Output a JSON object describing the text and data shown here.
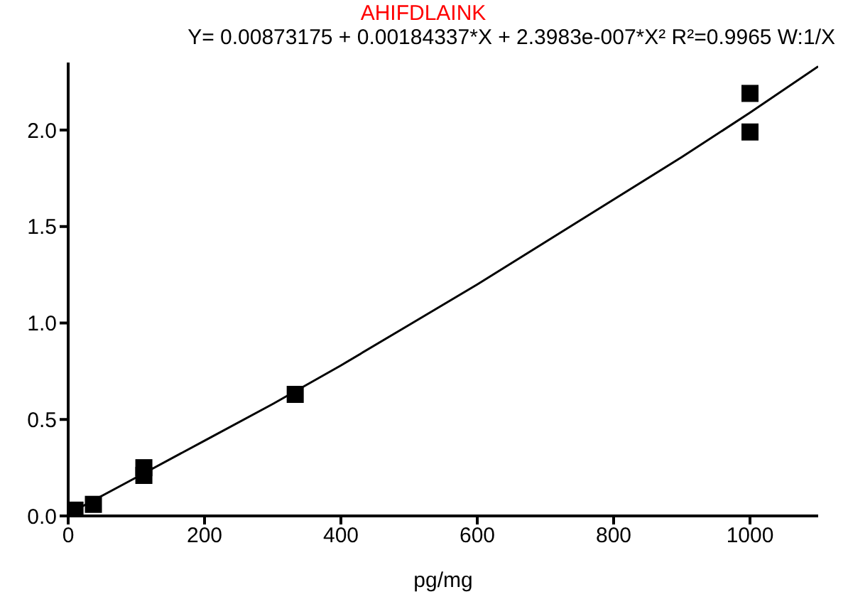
{
  "chart_data": {
    "type": "scatter",
    "title": "AHIFDLAINK",
    "subtitle": "Y= 0.00873175 + 0.00184337*X + 2.3983e-007*X² R²=0.9965 W:1/X",
    "xlabel": "pg/mg",
    "series": [
      {
        "color": "#000000",
        "marker": "square",
        "x": [
          10,
          37,
          111,
          111,
          333,
          1000,
          1000
        ],
        "values": [
          0.03,
          0.06,
          0.21,
          0.25,
          0.63,
          2.19,
          1.99
        ]
      },
      {
        "type": "line",
        "color": "#000000",
        "marker": "none",
        "line_style": "solid",
        "x": [
          0,
          100,
          200,
          300,
          400,
          500,
          600,
          700,
          800,
          900,
          1000,
          1100
        ],
        "values": [
          0.01,
          0.2,
          0.39,
          0.58,
          0.78,
          0.99,
          1.2,
          1.42,
          1.64,
          1.86,
          2.09,
          2.33
        ]
      }
    ],
    "xlim": [
      0,
      1100
    ],
    "xticks": [
      0,
      200,
      400,
      600,
      800,
      1000
    ],
    "ylim": [
      0,
      2.35
    ],
    "yticks": [
      {
        "value": 0,
        "label": "0.0"
      },
      0.5,
      {
        "value": 1,
        "label": "1.0"
      },
      1.5,
      {
        "value": 2,
        "label": "2.0"
      }
    ],
    "grid": false,
    "legend": false
  }
}
